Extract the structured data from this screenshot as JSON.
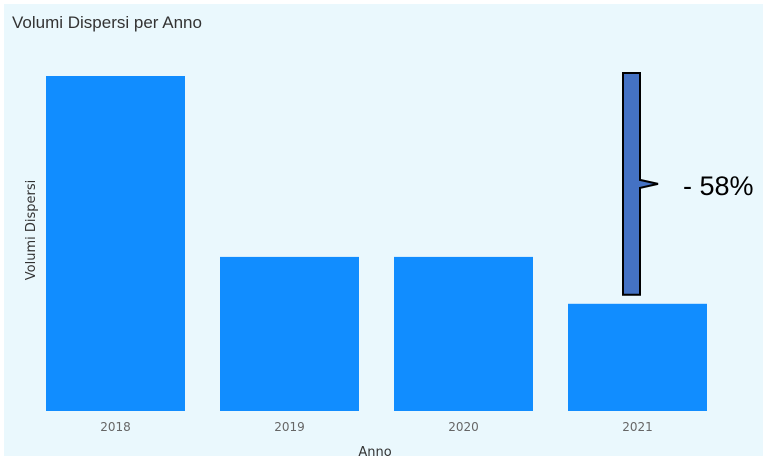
{
  "chart_data": {
    "type": "bar",
    "title": "Volumi Dispersi per Anno",
    "xlabel": "Anno",
    "ylabel": "Volumi Dispersi",
    "categories": [
      "2018",
      "2019",
      "2020",
      "2021"
    ],
    "values": [
      100,
      46,
      46,
      32
    ],
    "ylim": [
      0,
      100
    ],
    "grid": false,
    "bar_color": "#118dff",
    "annotation": {
      "text": "- 58%",
      "bracket_color": "#4472c4"
    }
  },
  "colors": {
    "background": "#eaf8fd",
    "bar": "#118dff",
    "bracket": "#4472c4"
  }
}
